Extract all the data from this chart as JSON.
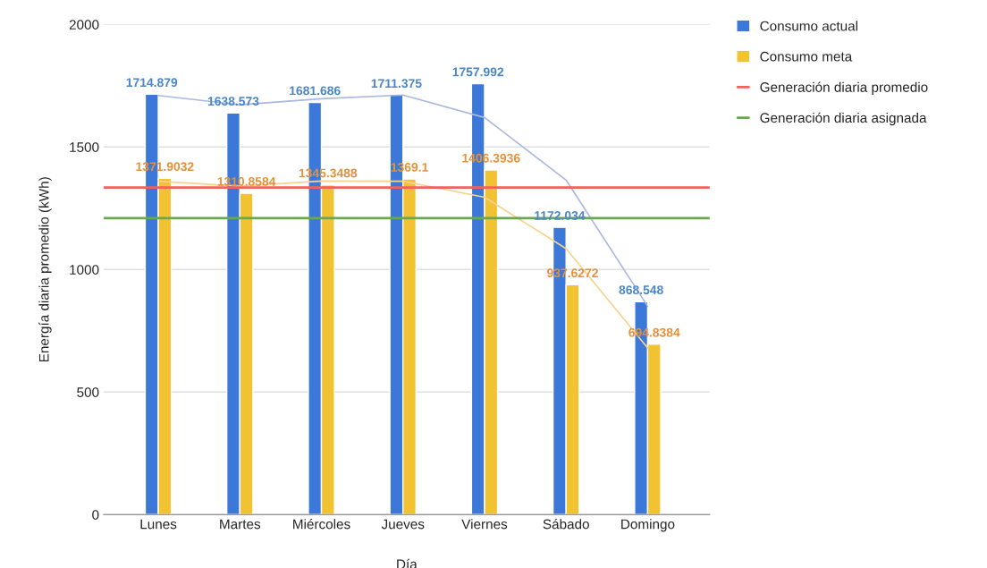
{
  "chart_data": {
    "type": "bar",
    "xlabel": "Día",
    "ylabel": "Energía diaria promedio (kWh)",
    "categories": [
      "Lunes",
      "Martes",
      "Miércoles",
      "Jueves",
      "Viernes",
      "Sábado",
      "Domingo"
    ],
    "series": [
      {
        "name": "Consumo actual",
        "color": "#3c78d8",
        "values": [
          1714.879,
          1638.573,
          1681.686,
          1711.375,
          1757.992,
          1172.034,
          868.548
        ],
        "value_labels": [
          "1714.879",
          "1638.573",
          "1681.686",
          "1711.375",
          "1757.992",
          "1172.034",
          "868.548"
        ]
      },
      {
        "name": "Consumo meta",
        "color": "#f1c232",
        "values": [
          1371.9032,
          1310.8584,
          1345.3488,
          1369.1,
          1406.3936,
          937.6272,
          694.8384
        ],
        "value_labels": [
          "1371.9032",
          "1310.8584",
          "1345.3488",
          "1369.1",
          "1406.3936",
          "937.6272",
          "694.8384"
        ]
      },
      {
        "type": "line",
        "color": "#aab8e0",
        "values": [
          1710,
          1672,
          1697,
          1712,
          1620,
          1365,
          850
        ]
      },
      {
        "type": "line",
        "color": "#f7d28f",
        "values": [
          1360,
          1340,
          1361,
          1360,
          1295,
          1085,
          680
        ]
      }
    ],
    "ref_lines": [
      {
        "axis": "y",
        "value": 1335,
        "label": "Generación diaria promedio",
        "color": "#f4605a"
      },
      {
        "axis": "y",
        "value": 1210,
        "label": "Generación diaria asignada",
        "color": "#6aa84f"
      }
    ],
    "ylim": [
      0,
      2000
    ],
    "yticks": [
      0,
      500,
      1000,
      1500,
      2000
    ],
    "grid": "y",
    "legend": "right"
  }
}
